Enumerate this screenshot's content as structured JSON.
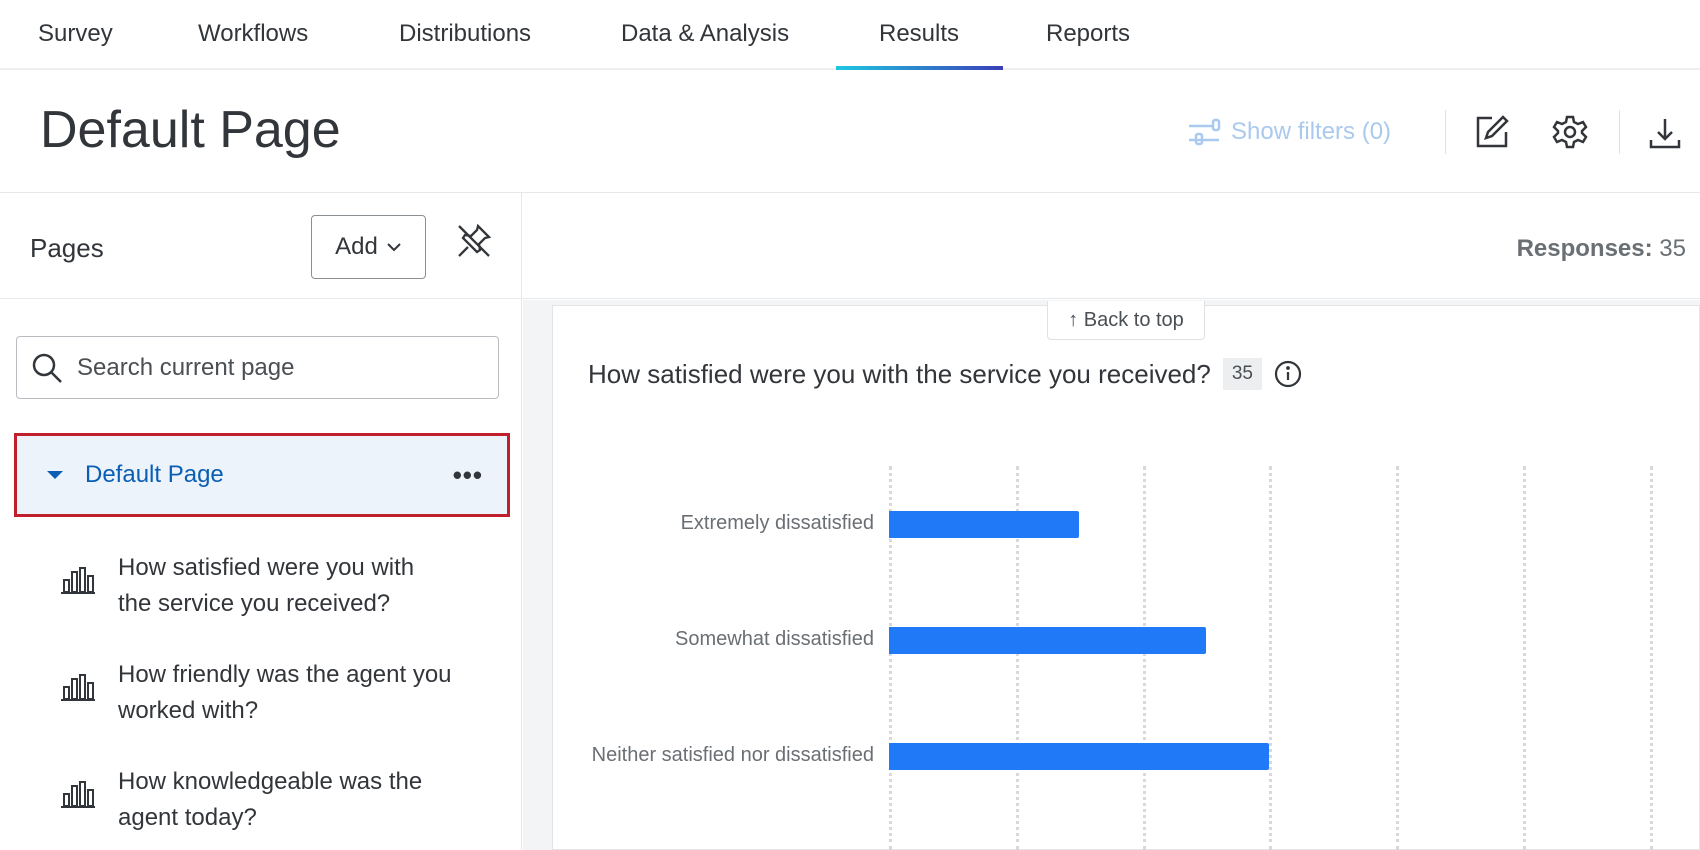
{
  "nav": {
    "tabs": [
      {
        "label": "Survey"
      },
      {
        "label": "Workflows"
      },
      {
        "label": "Distributions"
      },
      {
        "label": "Data & Analysis"
      },
      {
        "label": "Results",
        "active": true
      },
      {
        "label": "Reports"
      }
    ]
  },
  "header": {
    "title": "Default Page",
    "show_filters": "Show filters (0)",
    "icons": [
      "filter-icon",
      "edit-icon",
      "gear-icon",
      "download-icon"
    ]
  },
  "sidebar": {
    "title": "Pages",
    "add_label": "Add",
    "search_placeholder": "Search current page",
    "page": {
      "label": "Default Page",
      "menu": "•••"
    },
    "questions": [
      {
        "line1": "How satisfied were you with",
        "line2": "the service you received?"
      },
      {
        "line1": "How friendly was the agent you",
        "line2": "worked with?"
      },
      {
        "line1": "How knowledgeable was the",
        "line2": "agent today?"
      }
    ]
  },
  "main": {
    "responses_label": "Responses:",
    "responses_value": "35",
    "back_to_top": "↑ Back to top",
    "question_title": "How satisfied were you with the service you received?",
    "question_count": "35"
  },
  "colors": {
    "bar": "#2079f7",
    "accent": "#0a5fb4",
    "highlight_border": "#c0202c"
  },
  "chart_data": {
    "type": "bar",
    "orientation": "horizontal",
    "categories": [
      "Extremely dissatisfied",
      "Somewhat dissatisfied",
      "Neither satisfied nor dissatisfied"
    ],
    "values": [
      3,
      5,
      6
    ],
    "xlim": [
      0,
      12
    ],
    "grid_step": 2,
    "grid": true
  }
}
